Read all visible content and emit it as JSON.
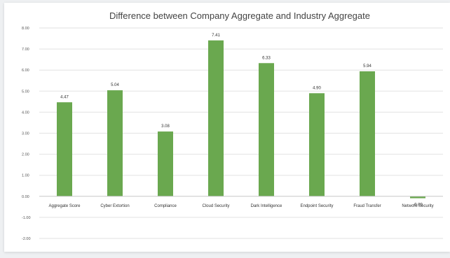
{
  "chart_data": {
    "type": "bar",
    "title": "Difference between Company Aggregate and Industry Aggregate",
    "categories": [
      "Aggregate Score",
      "Cyber Extortion",
      "Compliance",
      "Cloud Security",
      "Dark Intelligence",
      "Endpoint Security",
      "Fraud Transfer",
      "Network Security"
    ],
    "values": [
      4.47,
      5.04,
      3.08,
      7.41,
      6.33,
      4.9,
      5.94,
      -0.09
    ],
    "value_labels": [
      "4.47",
      "5.04",
      "3.08",
      "7.41",
      "6.33",
      "4.90",
      "5.94",
      "-0.09"
    ],
    "ylim": [
      -2,
      8
    ],
    "yticks": [
      "8.00",
      "7.00",
      "6.00",
      "5.00",
      "4.00",
      "3.00",
      "2.00",
      "1.00",
      "0.00",
      "-1.00",
      "-2.00"
    ],
    "ytick_values": [
      8,
      7,
      6,
      5,
      4,
      3,
      2,
      1,
      0,
      -1,
      -2
    ],
    "xlabel": "",
    "ylabel": "",
    "grid": true,
    "legend": "none",
    "bar_color": "#6aa84f"
  }
}
